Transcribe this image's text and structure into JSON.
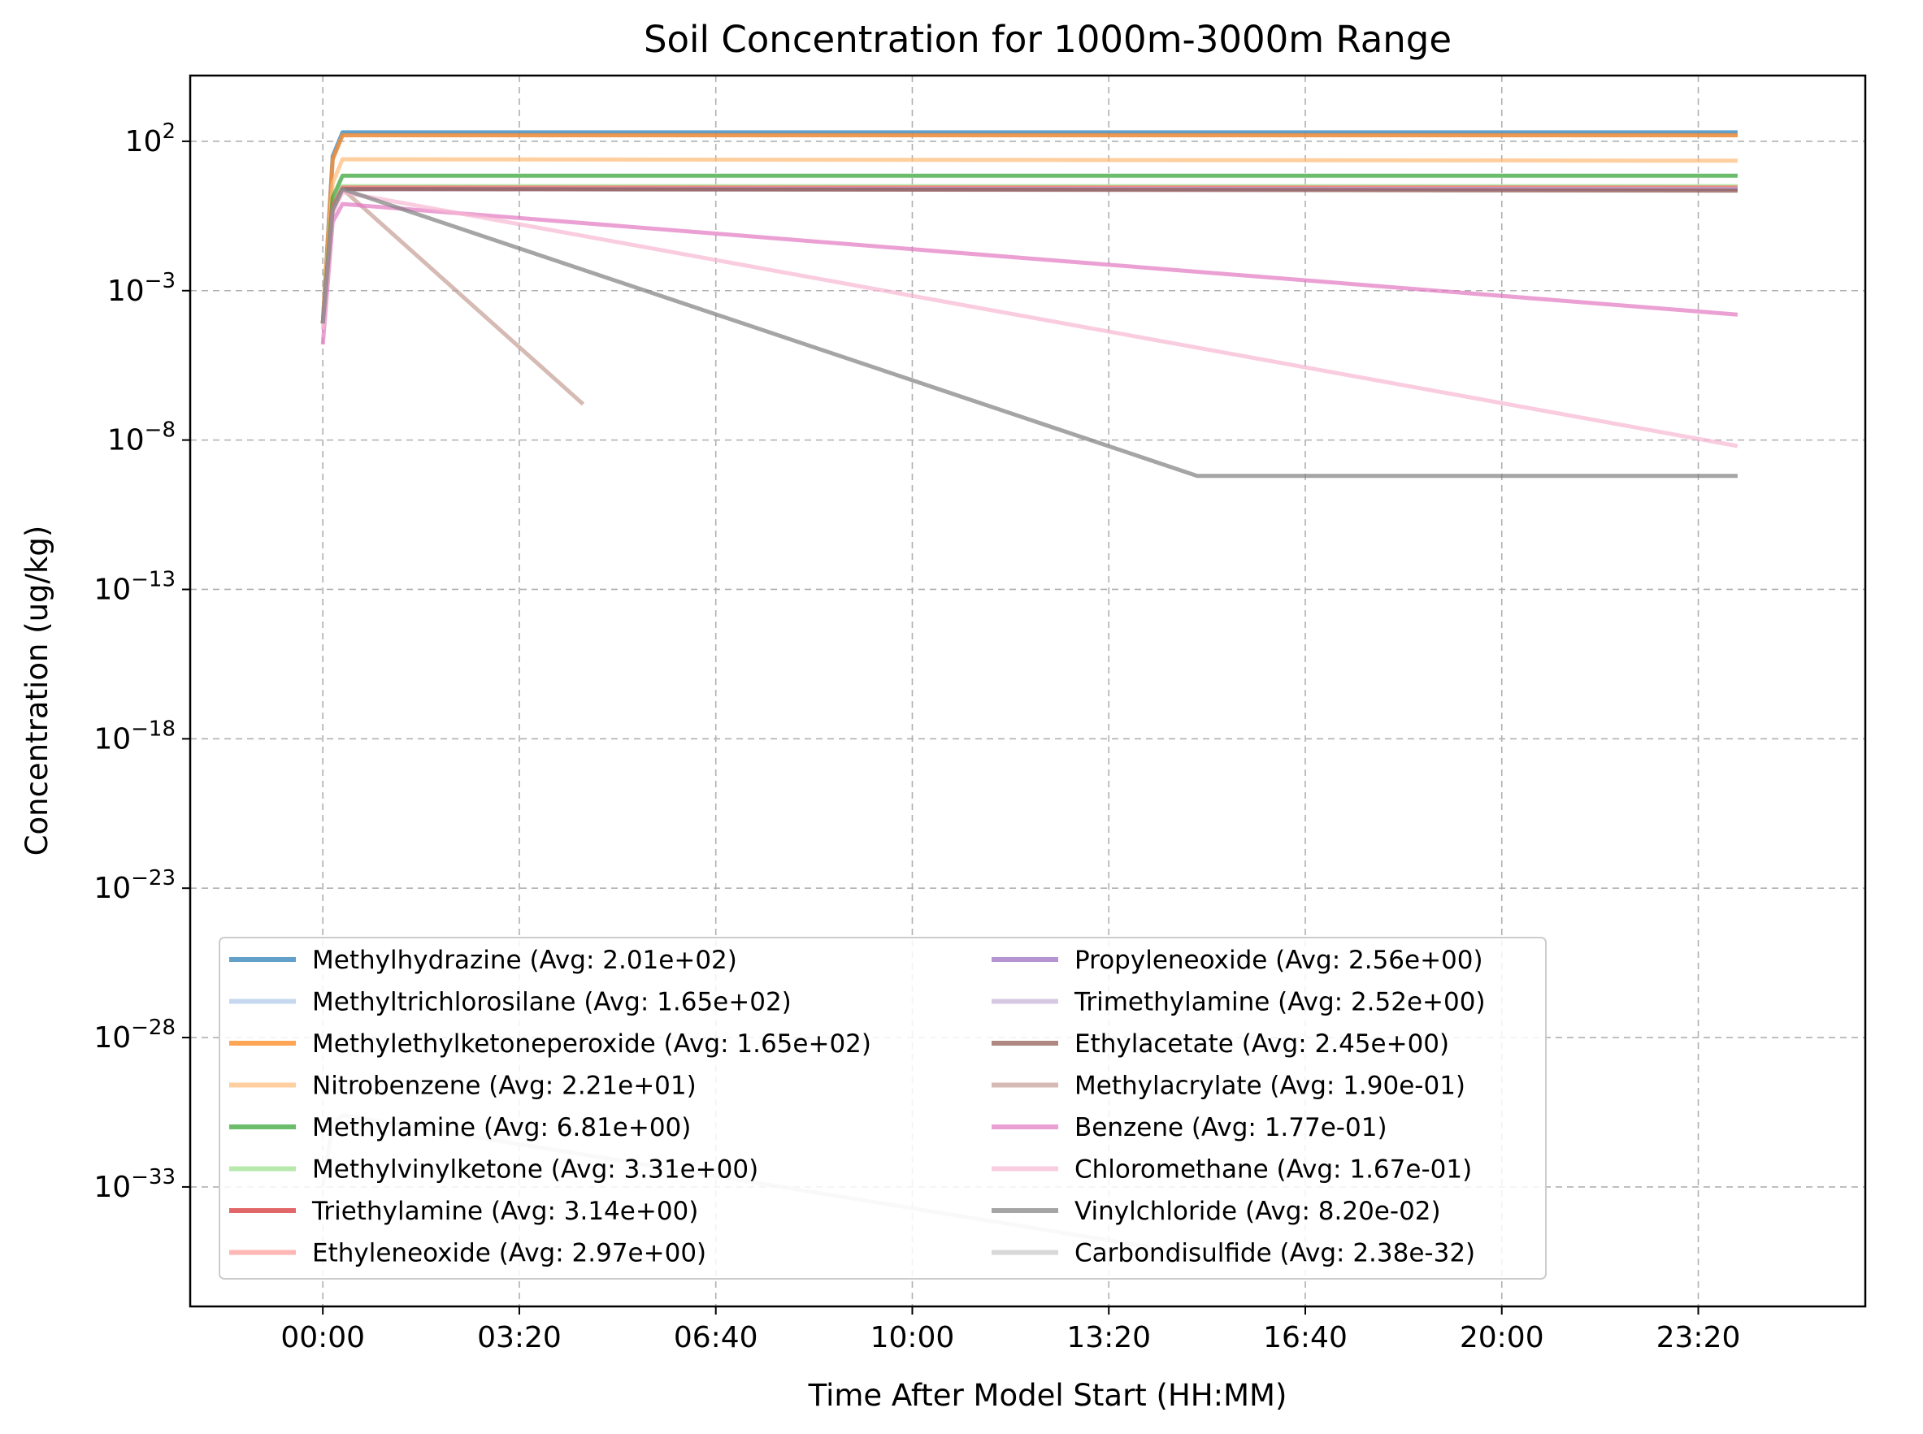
{
  "chart_data": {
    "type": "line",
    "title": "Soil Concentration for 1000m-3000m Range",
    "xlabel": "Time After Model Start (HH:MM)",
    "ylabel": "Concentration (ug/kg)",
    "yscale": "log",
    "x_unit": "minutes after model start",
    "xlim": [
      -135,
      1570
    ],
    "ylim_log10": [
      4.2,
      -37.0
    ],
    "x_ticks": [
      {
        "value": 0,
        "label": "00:00"
      },
      {
        "value": 200,
        "label": "03:20"
      },
      {
        "value": 400,
        "label": "06:40"
      },
      {
        "value": 600,
        "label": "10:00"
      },
      {
        "value": 800,
        "label": "13:20"
      },
      {
        "value": 1000,
        "label": "16:40"
      },
      {
        "value": 1200,
        "label": "20:00"
      },
      {
        "value": 1400,
        "label": "23:20"
      }
    ],
    "y_ticks": [
      {
        "exp": 2,
        "base": "10",
        "sup": "2"
      },
      {
        "exp": -3,
        "base": "10",
        "sup": "−3"
      },
      {
        "exp": -8,
        "base": "10",
        "sup": "−8"
      },
      {
        "exp": -13,
        "base": "10",
        "sup": "−13"
      },
      {
        "exp": -18,
        "base": "10",
        "sup": "−18"
      },
      {
        "exp": -23,
        "base": "10",
        "sup": "−23"
      },
      {
        "exp": -28,
        "base": "10",
        "sup": "−28"
      },
      {
        "exp": -33,
        "base": "10",
        "sup": "−33"
      }
    ],
    "grid": true,
    "legend_position": "lower-left",
    "series": [
      {
        "name": "Methylhydrazine",
        "label": "Methylhydrazine (Avg: 2.01e+02)",
        "color": "#1f77b4",
        "x": [
          0,
          10,
          20,
          1440
        ],
        "log10_y": [
          -4.1,
          1.5,
          2.3,
          2.3
        ]
      },
      {
        "name": "Methyltrichlorosilane",
        "label": "Methyltrichlorosilane (Avg: 1.65e+02)",
        "color": "#aec7e8",
        "x": [
          0,
          10,
          20,
          1440
        ],
        "log10_y": [
          -4.1,
          1.4,
          2.2,
          2.2
        ]
      },
      {
        "name": "Methylethylketoneperoxide",
        "label": "Methylethylketoneperoxide (Avg: 1.65e+02)",
        "color": "#ff7f0e",
        "x": [
          0,
          10,
          20,
          1440
        ],
        "log10_y": [
          -4.1,
          1.4,
          2.2,
          2.2
        ]
      },
      {
        "name": "Nitrobenzene",
        "label": "Nitrobenzene (Avg: 2.21e+01)",
        "color": "#ffbb78",
        "x": [
          0,
          10,
          20,
          1440
        ],
        "log10_y": [
          -4.1,
          0.6,
          1.4,
          1.35
        ]
      },
      {
        "name": "Methylamine",
        "label": "Methylamine (Avg: 6.81e+00)",
        "color": "#2ca02c",
        "x": [
          0,
          10,
          20,
          1440
        ],
        "log10_y": [
          -4.1,
          0.1,
          0.85,
          0.85
        ]
      },
      {
        "name": "Methylvinylketone",
        "label": "Methylvinylketone (Avg: 3.31e+00)",
        "color": "#98df8a",
        "x": [
          0,
          10,
          20,
          1440
        ],
        "log10_y": [
          -4.1,
          -0.2,
          0.5,
          0.5
        ]
      },
      {
        "name": "Triethylamine",
        "label": "Triethylamine (Avg: 3.14e+00)",
        "color": "#d62728",
        "x": [
          0,
          10,
          20,
          1440
        ],
        "log10_y": [
          -4.1,
          -0.2,
          0.45,
          0.45
        ]
      },
      {
        "name": "Ethyleneoxide",
        "label": "Ethyleneoxide (Avg: 2.97e+00)",
        "color": "#ff9896",
        "x": [
          0,
          10,
          20,
          1440
        ],
        "log10_y": [
          -4.1,
          -0.25,
          0.45,
          0.45
        ]
      },
      {
        "name": "Propyleneoxide",
        "label": "Propyleneoxide (Avg: 2.56e+00)",
        "color": "#9467bd",
        "x": [
          0,
          10,
          20,
          1440
        ],
        "log10_y": [
          -4.1,
          -0.3,
          0.4,
          0.4
        ]
      },
      {
        "name": "Trimethylamine",
        "label": "Trimethylamine (Avg: 2.52e+00)",
        "color": "#c5b0d5",
        "x": [
          0,
          10,
          20,
          1440
        ],
        "log10_y": [
          -4.1,
          -0.3,
          0.4,
          0.4
        ]
      },
      {
        "name": "Ethylacetate",
        "label": "Ethylacetate (Avg: 2.45e+00)",
        "color": "#8c564b",
        "x": [
          0,
          10,
          20,
          1440
        ],
        "log10_y": [
          -4.1,
          -0.3,
          0.4,
          0.35
        ]
      },
      {
        "name": "Methylacrylate",
        "label": "Methylacrylate (Avg: 1.90e-01)",
        "color": "#c49c94",
        "x": [
          0,
          10,
          20,
          265
        ],
        "log10_y": [
          -4.1,
          -0.3,
          0.4,
          -6.8
        ]
      },
      {
        "name": "Benzene",
        "label": "Benzene (Avg: 1.77e-01)",
        "color": "#e377c2",
        "x": [
          0,
          10,
          20,
          1440
        ],
        "log10_y": [
          -4.8,
          -0.7,
          -0.1,
          -3.8
        ]
      },
      {
        "name": "Chloromethane",
        "label": "Chloromethane (Avg: 1.67e-01)",
        "color": "#f7b6d2",
        "x": [
          0,
          10,
          20,
          1440
        ],
        "log10_y": [
          -4.3,
          -0.4,
          0.3,
          -8.2
        ]
      },
      {
        "name": "Vinylchloride",
        "label": "Vinylchloride (Avg: 8.20e-02)",
        "color": "#7f7f7f",
        "x": [
          0,
          10,
          20,
          890,
          1440
        ],
        "log10_y": [
          -4.1,
          -0.3,
          0.4,
          -9.2,
          -9.2
        ]
      },
      {
        "name": "Carbondisulfide",
        "label": "Carbondisulfide (Avg: 2.38e-32)",
        "color": "#c7c7c7",
        "x": [
          0,
          10,
          20,
          840
        ],
        "log10_y": [
          -33.0,
          -30.9,
          -30.6,
          -35.0
        ]
      }
    ]
  }
}
